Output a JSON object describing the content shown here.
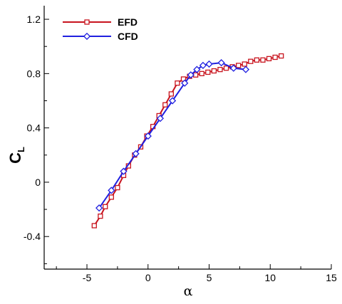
{
  "chart_data": {
    "type": "line",
    "xlabel": "α",
    "ylabel": "C",
    "ylabel_subscript": "L",
    "xlim": [
      -8.5,
      15
    ],
    "ylim": [
      -0.64,
      1.3
    ],
    "x_ticks": [
      -5,
      0,
      5,
      10,
      15
    ],
    "x_tick_labels": [
      "-5",
      "0",
      "5",
      "10",
      "15"
    ],
    "y_ticks": [
      -0.4,
      0,
      0.4,
      0.8,
      1.2
    ],
    "y_tick_labels": [
      "-0.4",
      "0",
      "0.4",
      "0.8",
      "1.2"
    ],
    "grid": false,
    "legend_position": "top-left",
    "series": [
      {
        "name": "EFD",
        "color": "#c8141e",
        "marker": "square",
        "x": [
          -4.4,
          -3.9,
          -3.5,
          -3.0,
          -2.5,
          -2.0,
          -1.6,
          -1.1,
          -0.6,
          -0.1,
          0.4,
          0.9,
          1.4,
          1.9,
          2.4,
          2.9,
          3.4,
          3.9,
          4.4,
          4.9,
          5.4,
          5.9,
          6.4,
          6.9,
          7.4,
          7.9,
          8.4,
          8.9,
          9.4,
          9.9,
          10.4,
          10.9
        ],
        "y": [
          -0.32,
          -0.25,
          -0.18,
          -0.11,
          -0.04,
          0.05,
          0.12,
          0.2,
          0.26,
          0.34,
          0.41,
          0.49,
          0.57,
          0.65,
          0.73,
          0.76,
          0.78,
          0.79,
          0.8,
          0.81,
          0.82,
          0.83,
          0.84,
          0.85,
          0.86,
          0.87,
          0.89,
          0.9,
          0.9,
          0.91,
          0.92,
          0.93
        ]
      },
      {
        "name": "CFD",
        "color": "#2020e0",
        "marker": "diamond",
        "x": [
          -4.0,
          -3.0,
          -2.0,
          -1.0,
          0.0,
          1.0,
          2.0,
          3.0,
          3.5,
          4.0,
          4.5,
          5.0,
          6.0,
          7.0,
          8.0
        ],
        "y": [
          -0.19,
          -0.06,
          0.08,
          0.21,
          0.34,
          0.47,
          0.6,
          0.73,
          0.79,
          0.83,
          0.86,
          0.87,
          0.88,
          0.84,
          0.83
        ]
      }
    ]
  }
}
